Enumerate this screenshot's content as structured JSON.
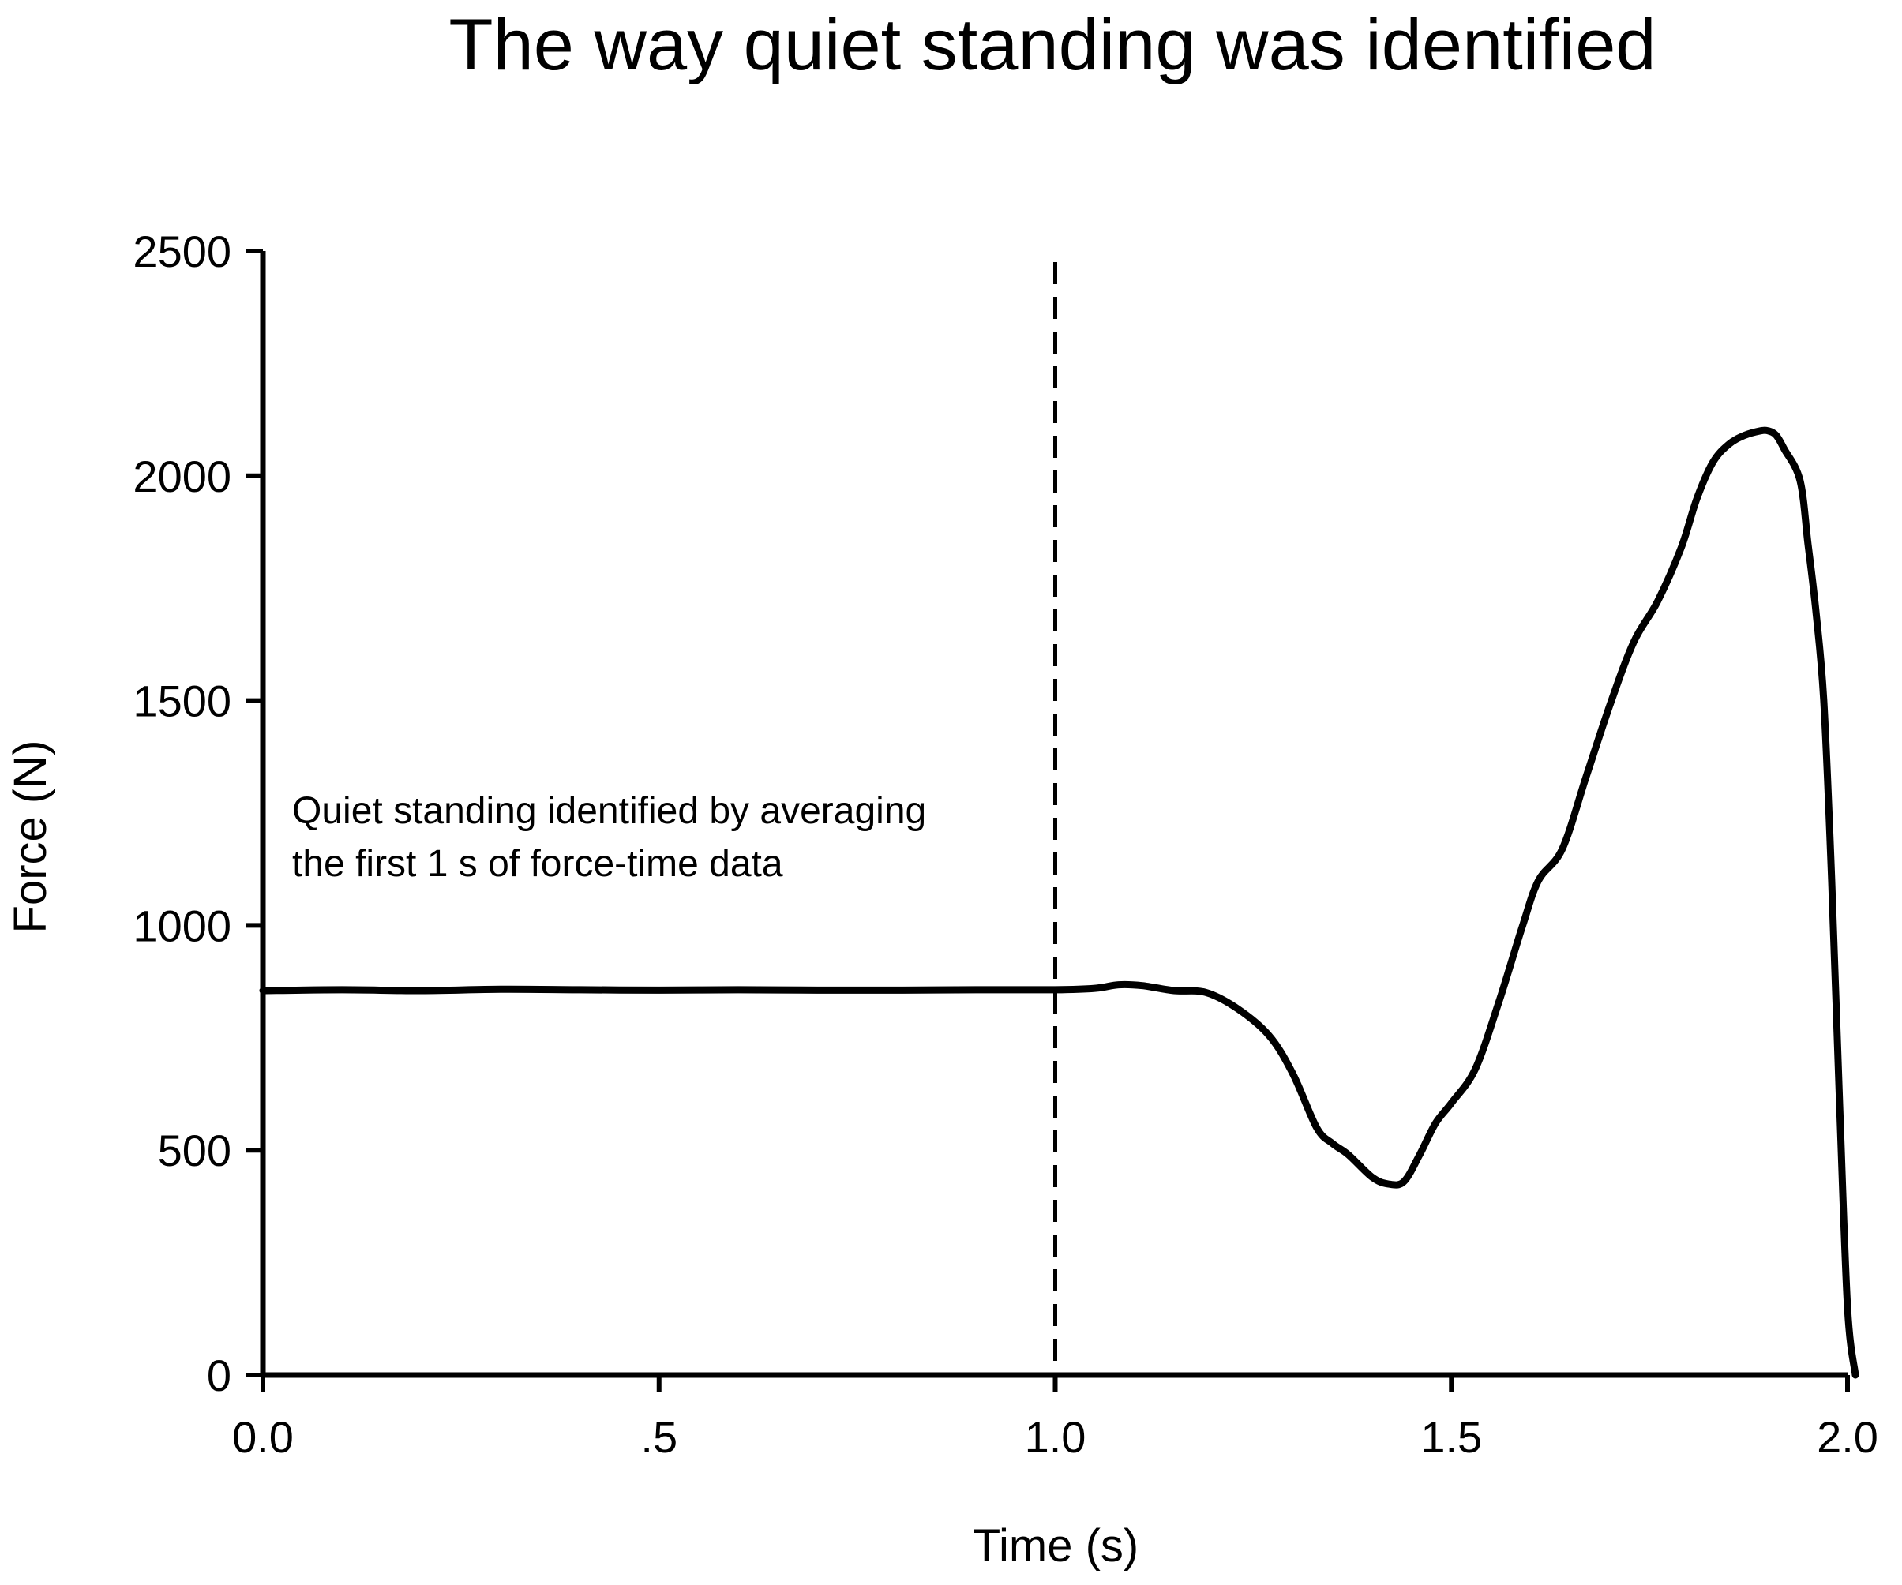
{
  "chart_data": {
    "type": "line",
    "title": "The way quiet standing was identified",
    "xlabel": "Time (s)",
    "ylabel": "Force (N)",
    "xlim": [
      0.0,
      2.0
    ],
    "ylim": [
      0,
      2500
    ],
    "x_ticks": [
      0.0,
      0.5,
      1.0,
      1.5,
      2.0
    ],
    "x_tick_labels": [
      "0.0",
      ".5",
      "1.0",
      "1.5",
      "2.0"
    ],
    "y_ticks": [
      0,
      500,
      1000,
      1500,
      2000,
      2500
    ],
    "y_tick_labels": [
      "0",
      "500",
      "1000",
      "1500",
      "2000",
      "2500"
    ],
    "grid": false,
    "reference_line": {
      "x": 1.0,
      "style": "dashed"
    },
    "annotation": {
      "line1": "Quiet standing identified by averaging",
      "line2": "the first 1 s of force-time data"
    },
    "series": [
      {
        "x": [
          0.0,
          0.1,
          0.2,
          0.3,
          0.4,
          0.5,
          0.6,
          0.7,
          0.8,
          0.9,
          1.0,
          1.05,
          1.08,
          1.11,
          1.15,
          1.19,
          1.23,
          1.27,
          1.3,
          1.33,
          1.35,
          1.37,
          1.4,
          1.42,
          1.44,
          1.46,
          1.48,
          1.5,
          1.53,
          1.56,
          1.59,
          1.61,
          1.64,
          1.67,
          1.7,
          1.73,
          1.76,
          1.79,
          1.81,
          1.83,
          1.85,
          1.87,
          1.89,
          1.9,
          1.91,
          1.92,
          1.94,
          1.95,
          1.96,
          1.97,
          1.98,
          1.99,
          2.0,
          2.01
        ],
        "y": [
          855,
          857,
          855,
          858,
          857,
          856,
          857,
          856,
          856,
          857,
          857,
          860,
          868,
          866,
          855,
          851,
          815,
          755,
          670,
          550,
          515,
          490,
          440,
          425,
          430,
          490,
          560,
          605,
          680,
          830,
          1000,
          1100,
          1170,
          1330,
          1490,
          1630,
          1720,
          1840,
          1950,
          2030,
          2070,
          2090,
          2100,
          2100,
          2090,
          2060,
          1990,
          1850,
          1700,
          1500,
          1100,
          600,
          150,
          0
        ]
      }
    ]
  }
}
